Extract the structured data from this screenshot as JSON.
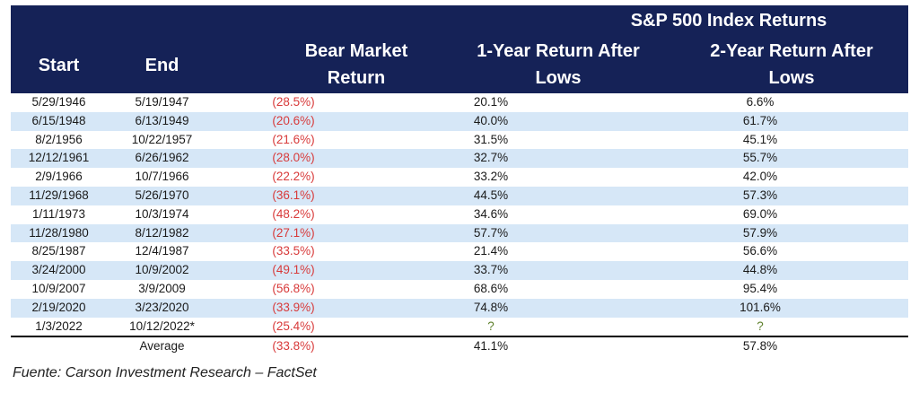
{
  "header": {
    "group_title": "S&P 500 Index Returns",
    "start": "Start",
    "end": "End",
    "bear_line1": "Bear Market",
    "bear_line2": "Return",
    "one_year_line1": "1-Year Return After",
    "one_year_line2": "Lows",
    "two_year_line1": "2-Year Return After",
    "two_year_line2": "Lows"
  },
  "rows": [
    {
      "start": "5/29/1946",
      "end": "5/19/1947",
      "bear": "(28.5%)",
      "one": "20.1%",
      "two": "6.6%"
    },
    {
      "start": "6/15/1948",
      "end": "6/13/1949",
      "bear": "(20.6%)",
      "one": "40.0%",
      "two": "61.7%"
    },
    {
      "start": "8/2/1956",
      "end": "10/22/1957",
      "bear": "(21.6%)",
      "one": "31.5%",
      "two": "45.1%"
    },
    {
      "start": "12/12/1961",
      "end": "6/26/1962",
      "bear": "(28.0%)",
      "one": "32.7%",
      "two": "55.7%"
    },
    {
      "start": "2/9/1966",
      "end": "10/7/1966",
      "bear": "(22.2%)",
      "one": "33.2%",
      "two": "42.0%"
    },
    {
      "start": "11/29/1968",
      "end": "5/26/1970",
      "bear": "(36.1%)",
      "one": "44.5%",
      "two": "57.3%"
    },
    {
      "start": "1/11/1973",
      "end": "10/3/1974",
      "bear": "(48.2%)",
      "one": "34.6%",
      "two": "69.0%"
    },
    {
      "start": "11/28/1980",
      "end": "8/12/1982",
      "bear": "(27.1%)",
      "one": "57.7%",
      "two": "57.9%"
    },
    {
      "start": "8/25/1987",
      "end": "12/4/1987",
      "bear": "(33.5%)",
      "one": "21.4%",
      "two": "56.6%"
    },
    {
      "start": "3/24/2000",
      "end": "10/9/2002",
      "bear": "(49.1%)",
      "one": "33.7%",
      "two": "44.8%"
    },
    {
      "start": "10/9/2007",
      "end": "3/9/2009",
      "bear": "(56.8%)",
      "one": "68.6%",
      "two": "95.4%"
    },
    {
      "start": "2/19/2020",
      "end": "3/23/2020",
      "bear": "(33.9%)",
      "one": "74.8%",
      "two": "101.6%"
    },
    {
      "start": "1/3/2022",
      "end": "10/12/2022*",
      "bear": "(25.4%)",
      "one": "?",
      "two": "?"
    }
  ],
  "average": {
    "label": "Average",
    "bear": "(33.8%)",
    "one": "41.1%",
    "two": "57.8%"
  },
  "footer": "Fuente: Carson Investment Research – FactSet",
  "colors": {
    "header_bg": "#152257",
    "row_shade": "#d6e7f7",
    "negative": "#d83a3a"
  }
}
